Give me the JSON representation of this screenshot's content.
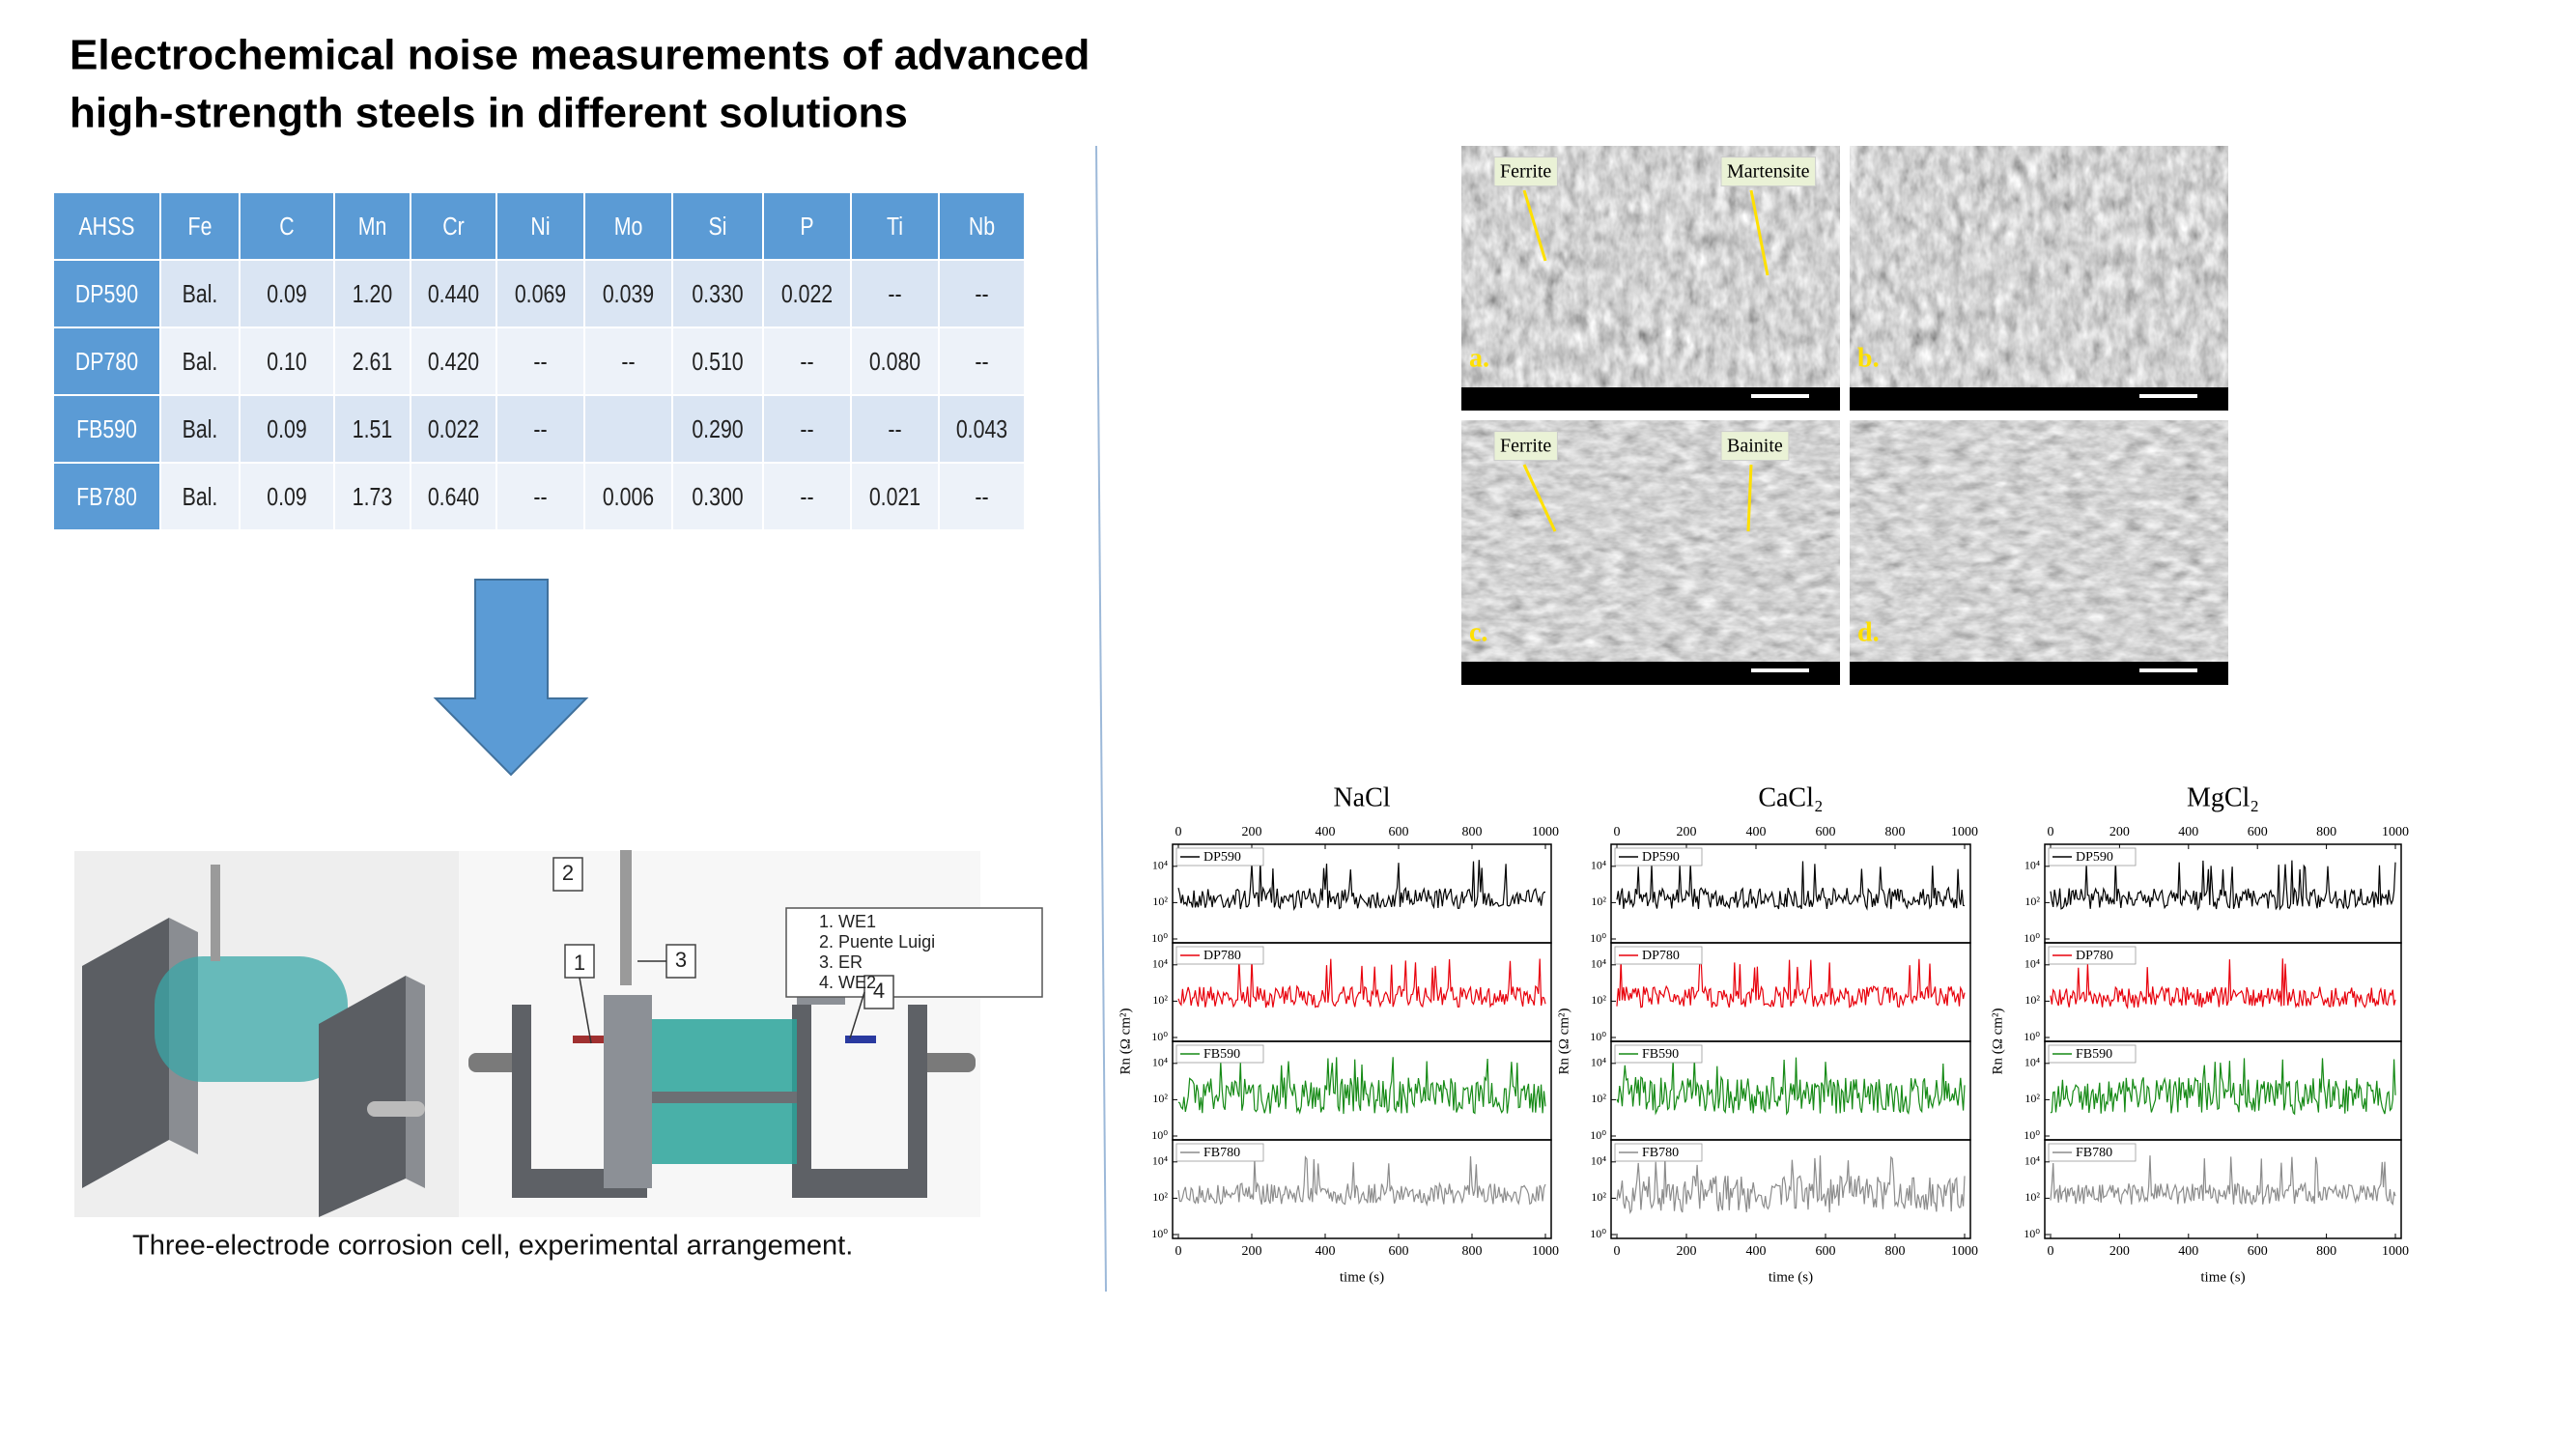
{
  "title": [
    "Electrochemical noise measurements of advanced",
    "high-strength steels in different solutions"
  ],
  "table": {
    "header": [
      "AHSS",
      "Fe",
      "C",
      "Mn",
      "Cr",
      "Ni",
      "Mo",
      "Si",
      "P",
      "Ti",
      "Nb"
    ],
    "rows": [
      [
        "DP590",
        "Bal.",
        "0.09",
        "1.20",
        "0.440",
        "0.069",
        "0.039",
        "0.330",
        "0.022",
        "--",
        "--"
      ],
      [
        "DP780",
        "Bal.",
        "0.10",
        "2.61",
        "0.420",
        "--",
        "--",
        "0.510",
        "--",
        "0.080",
        "--"
      ],
      [
        "FB590",
        "Bal.",
        "0.09",
        "1.51",
        "0.022",
        "--",
        null,
        "0.290",
        "--",
        "--",
        "0.043"
      ],
      [
        "FB780",
        "Bal.",
        "0.09",
        "1.73",
        "0.640",
        "--",
        "0.006",
        "0.300",
        "--",
        "0.021",
        "--"
      ]
    ]
  },
  "cell": {
    "callouts": [
      "1",
      "2",
      "3",
      "4"
    ],
    "legend": [
      "1.   WE1",
      "2.   Puente Luigi",
      "3.   ER",
      "4.   WE2"
    ]
  },
  "caption": "Three-electrode corrosion cell, experimental arrangement.",
  "sem": [
    {
      "label": "a.",
      "annotations": [
        "Ferrite",
        "Martensite"
      ]
    },
    {
      "label": "b.",
      "annotations": []
    },
    {
      "label": "c.",
      "annotations": [
        "Ferrite",
        "Bainite"
      ]
    },
    {
      "label": "d.",
      "annotations": []
    }
  ],
  "chart_data": [
    {
      "type": "line",
      "title": "NaCl",
      "xlabel": "time (s)",
      "ylabel": "Rn (Ω cm²)",
      "xlim": [
        0,
        1000
      ],
      "xticks": [
        0,
        200,
        400,
        600,
        800,
        1000
      ],
      "ylim": [
        1,
        100000
      ],
      "log_y": true,
      "yticks": [
        {
          "value": 1,
          "label": "10⁰"
        },
        {
          "value": 100,
          "label": "10²"
        },
        {
          "value": 10000,
          "label": "10⁴"
        }
      ],
      "series": [
        {
          "name": "DP590",
          "color": "#000000"
        },
        {
          "name": "DP780",
          "color": "#e8000b"
        },
        {
          "name": "FB590",
          "color": "#168a16"
        },
        {
          "name": "FB780",
          "color": "#8c8c8c"
        }
      ]
    },
    {
      "type": "line",
      "title": "CaCl₂",
      "xlabel": "time (s)",
      "ylabel": "Rn (Ω cm²)",
      "xlim": [
        0,
        1000
      ],
      "xticks": [
        0,
        200,
        400,
        600,
        800,
        1000
      ],
      "ylim": [
        1,
        100000
      ],
      "log_y": true,
      "yticks": [
        {
          "value": 1,
          "label": "10⁰"
        },
        {
          "value": 100,
          "label": "10²"
        },
        {
          "value": 10000,
          "label": "10⁴"
        }
      ],
      "series": [
        {
          "name": "DP590",
          "color": "#000000"
        },
        {
          "name": "DP780",
          "color": "#e8000b"
        },
        {
          "name": "FB590",
          "color": "#168a16"
        },
        {
          "name": "FB780",
          "color": "#8c8c8c"
        }
      ]
    },
    {
      "type": "line",
      "title": "MgCl₂",
      "xlabel": "time (s)",
      "ylabel": "Rn (Ω cm²)",
      "xlim": [
        0,
        1000
      ],
      "xticks": [
        0,
        200,
        400,
        600,
        800,
        1000
      ],
      "ylim": [
        1,
        100000
      ],
      "log_y": true,
      "yticks": [
        {
          "value": 1,
          "label": "10⁰"
        },
        {
          "value": 100,
          "label": "10²"
        },
        {
          "value": 10000,
          "label": "10⁴"
        }
      ],
      "series": [
        {
          "name": "DP590",
          "color": "#000000"
        },
        {
          "name": "DP780",
          "color": "#e8000b"
        },
        {
          "name": "FB590",
          "color": "#168a16"
        },
        {
          "name": "FB780",
          "color": "#8c8c8c"
        }
      ]
    }
  ]
}
